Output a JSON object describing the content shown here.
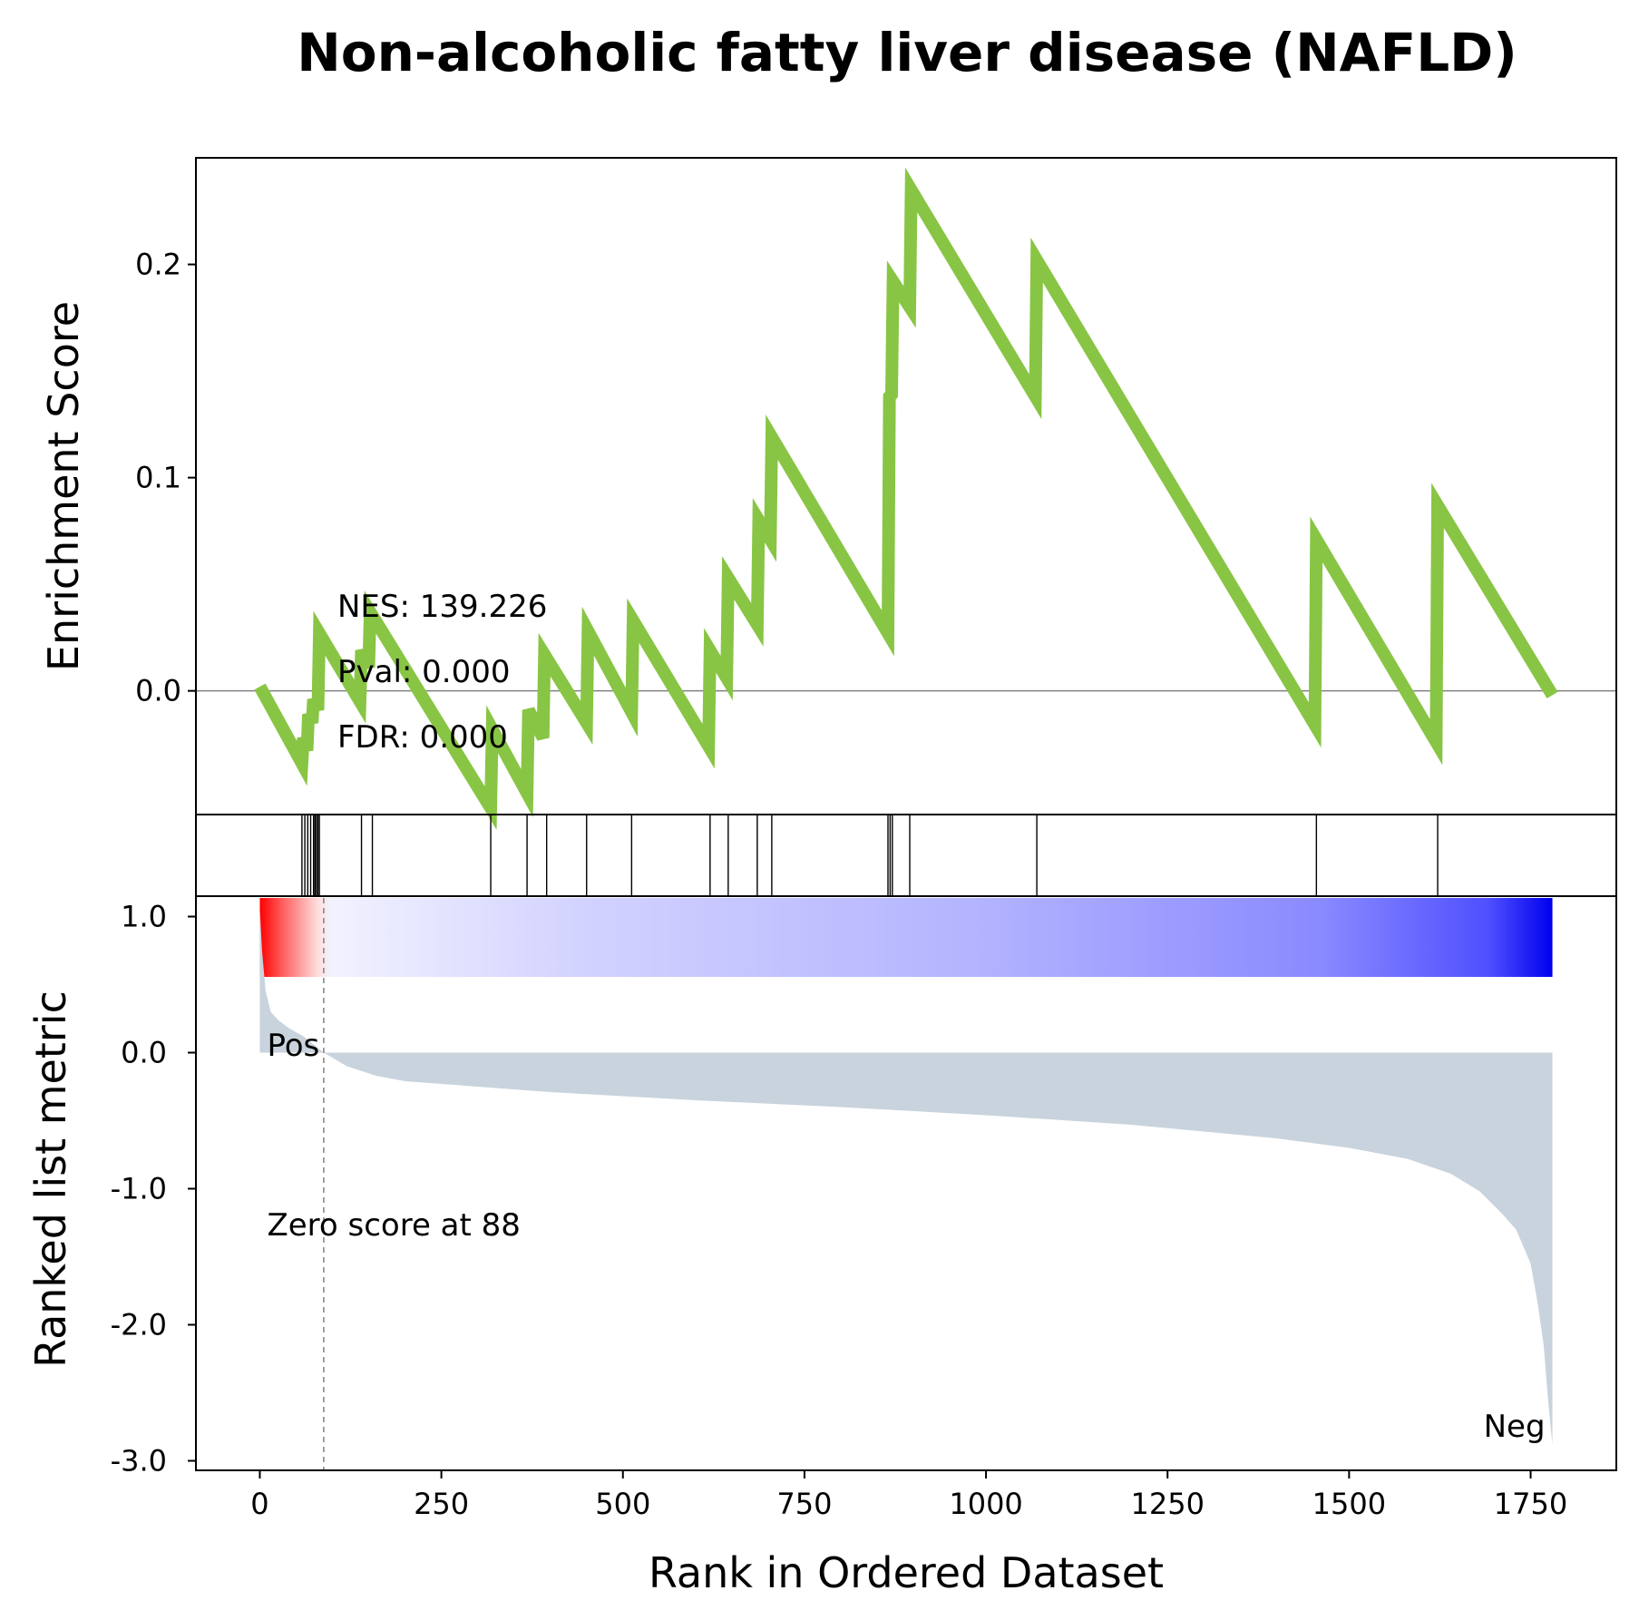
{
  "chart_data": {
    "type": "line",
    "title": "Non-alcoholic fatty liver disease (NAFLD)",
    "n_genes": 1780,
    "enrichment": {
      "ylabel": "Enrichment Score",
      "ylim": [
        -0.058,
        0.25
      ],
      "yticks": [
        0.0,
        0.1,
        0.2
      ],
      "ytick_labels": [
        "0.0",
        "0.1",
        "0.2"
      ],
      "zero_line": true,
      "line_color": "#88c544",
      "points": [
        [
          0,
          0.002
        ],
        [
          58,
          -0.034
        ],
        [
          60,
          -0.022
        ],
        [
          65,
          -0.028
        ],
        [
          67,
          -0.011
        ],
        [
          72,
          -0.015
        ],
        [
          74,
          -0.004
        ],
        [
          80,
          -0.009
        ],
        [
          82,
          0.027
        ],
        [
          138,
          -0.005
        ],
        [
          140,
          0.019
        ],
        [
          150,
          0.011
        ],
        [
          152,
          0.037
        ],
        [
          318,
          -0.055
        ],
        [
          320,
          -0.018
        ],
        [
          368,
          -0.048
        ],
        [
          370,
          -0.009
        ],
        [
          390,
          -0.022
        ],
        [
          392,
          0.017
        ],
        [
          450,
          -0.015
        ],
        [
          452,
          0.028
        ],
        [
          512,
          -0.01
        ],
        [
          514,
          0.033
        ],
        [
          618,
          -0.026
        ],
        [
          620,
          0.019
        ],
        [
          643,
          0.006
        ],
        [
          645,
          0.053
        ],
        [
          685,
          0.031
        ],
        [
          687,
          0.08
        ],
        [
          703,
          0.071
        ],
        [
          705,
          0.119
        ],
        [
          865,
          0.027
        ],
        [
          867,
          0.138
        ],
        [
          870,
          0.139
        ],
        [
          872,
          0.192
        ],
        [
          895,
          0.18
        ],
        [
          897,
          0.235
        ],
        [
          1068,
          0.138
        ],
        [
          1070,
          0.202
        ],
        [
          1453,
          -0.016
        ],
        [
          1455,
          0.071
        ],
        [
          1620,
          -0.024
        ],
        [
          1622,
          0.087
        ],
        [
          1780,
          -0.002
        ]
      ],
      "annotations": [
        "NES: 139.226",
        "Pval: 0.000",
        "FDR: 0.000"
      ]
    },
    "hits": [
      58,
      62,
      66,
      70,
      74,
      76,
      78,
      80,
      82,
      140,
      155,
      318,
      368,
      395,
      450,
      512,
      620,
      645,
      685,
      705,
      865,
      868,
      871,
      895,
      1070,
      1455,
      1622
    ],
    "ranked_metric": {
      "ylabel": "Ranked list metric",
      "xlabel": "Rank in Ordered Dataset",
      "ylim": [
        -3.07,
        1.15
      ],
      "yticks": [
        1.0,
        0.0,
        -1.0,
        -2.0,
        -3.0
      ],
      "ytick_labels": [
        "1.0",
        "0.0",
        "-1.0",
        "-2.0",
        "-3.0"
      ],
      "xlim": [
        -88,
        1868
      ],
      "xticks": [
        0,
        250,
        500,
        750,
        1000,
        1250,
        1500,
        1750
      ],
      "xtick_labels": [
        "0",
        "250",
        "500",
        "750",
        "1000",
        "1250",
        "1500",
        "1750"
      ],
      "fill_color": "#c8d3dd",
      "curve": [
        [
          0,
          1.05
        ],
        [
          3,
          0.75
        ],
        [
          8,
          0.45
        ],
        [
          15,
          0.3
        ],
        [
          25,
          0.24
        ],
        [
          40,
          0.18
        ],
        [
          60,
          0.12
        ],
        [
          88,
          0.0
        ],
        [
          120,
          -0.1
        ],
        [
          160,
          -0.17
        ],
        [
          200,
          -0.21
        ],
        [
          300,
          -0.25
        ],
        [
          400,
          -0.29
        ],
        [
          600,
          -0.35
        ],
        [
          800,
          -0.4
        ],
        [
          1000,
          -0.46
        ],
        [
          1200,
          -0.53
        ],
        [
          1400,
          -0.63
        ],
        [
          1500,
          -0.7
        ],
        [
          1580,
          -0.78
        ],
        [
          1640,
          -0.89
        ],
        [
          1680,
          -1.02
        ],
        [
          1710,
          -1.18
        ],
        [
          1730,
          -1.3
        ],
        [
          1750,
          -1.55
        ],
        [
          1760,
          -1.85
        ],
        [
          1768,
          -2.15
        ],
        [
          1774,
          -2.55
        ],
        [
          1780,
          -2.88
        ]
      ],
      "zero_cross": 88,
      "zero_label": "Zero score at 88",
      "pos_label": "Pos",
      "neg_label": "Neg",
      "pos_color": "#ff0000",
      "neg_color": "#0000ff",
      "dash_color": "#808080"
    }
  }
}
